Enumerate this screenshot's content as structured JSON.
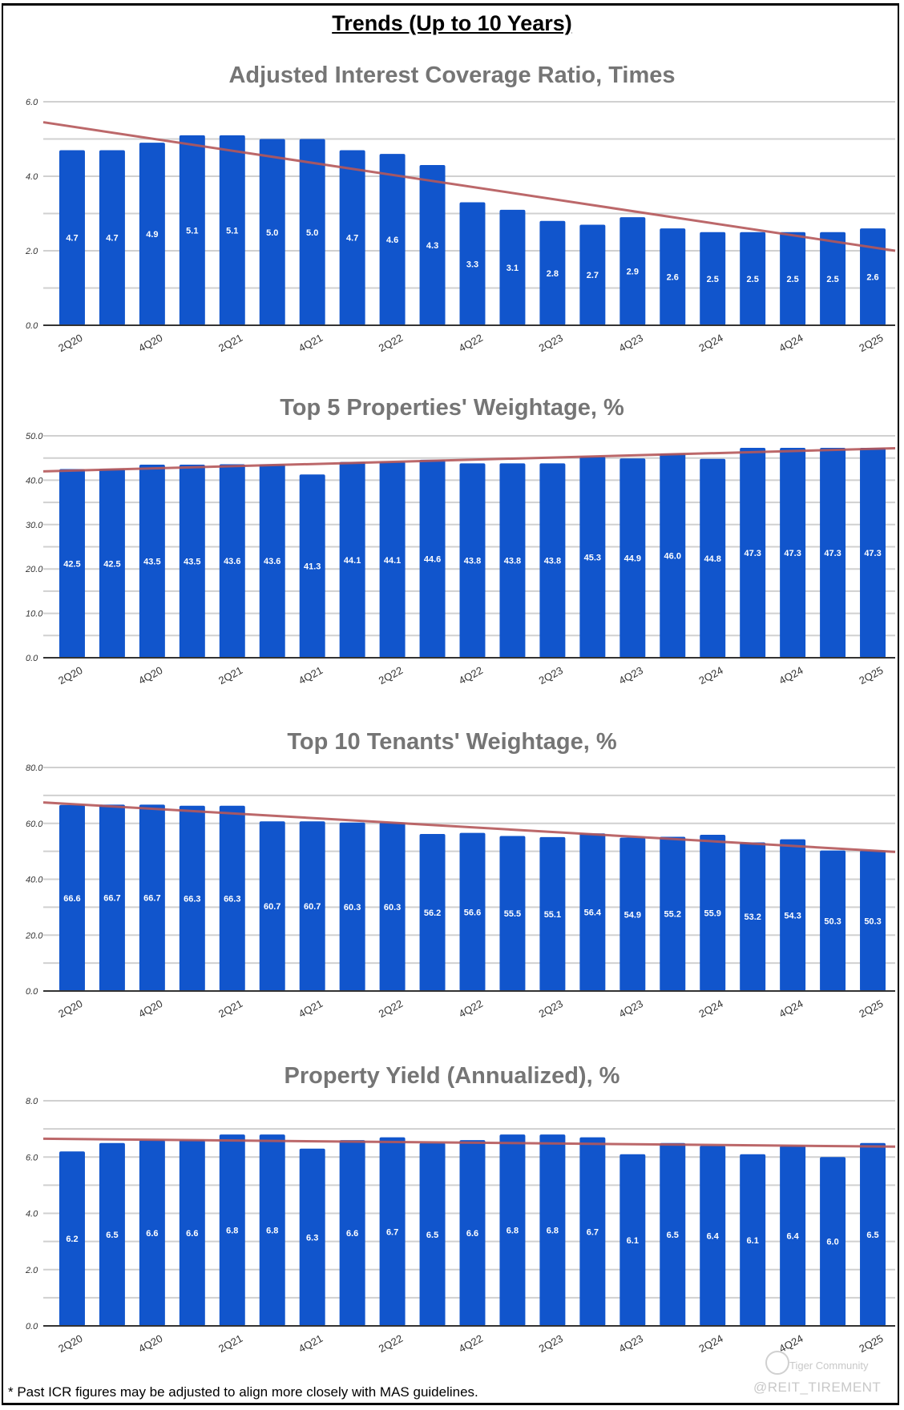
{
  "page_title": "Trends (Up to 10 Years)",
  "footnote": "* Past ICR figures may be adjusted to align more closely with MAS guidelines.",
  "watermark": {
    "brand": "Tiger Community",
    "handle": "@REIT_TIREMENT"
  },
  "colors": {
    "bar": "#1155cc",
    "trendline": "#b5585a",
    "grid": "#d0d0d0",
    "title": "#757575"
  },
  "chart_data": [
    {
      "type": "bar",
      "title": "Adjusted Interest Coverage Ratio, Times",
      "categories": [
        "2Q20",
        "3Q20",
        "4Q20",
        "1Q21",
        "2Q21",
        "3Q21",
        "4Q21",
        "1Q22",
        "2Q22",
        "3Q22",
        "4Q22",
        "1Q23",
        "2Q23",
        "3Q23",
        "4Q23",
        "1Q24",
        "2Q24",
        "3Q24",
        "4Q24",
        "1Q25",
        "2Q25"
      ],
      "shown_tick_labels": [
        "2Q20",
        "4Q20",
        "2Q21",
        "4Q21",
        "2Q22",
        "4Q22",
        "2Q23",
        "4Q23",
        "2Q24",
        "4Q24",
        "2Q25"
      ],
      "values": [
        4.7,
        4.7,
        4.9,
        5.1,
        5.1,
        5.0,
        5.0,
        4.7,
        4.6,
        4.3,
        3.3,
        3.1,
        2.8,
        2.7,
        2.9,
        2.6,
        2.5,
        2.5,
        2.5,
        2.5,
        2.6
      ],
      "ylim": [
        0,
        6
      ],
      "yticks": [
        "0.0",
        "2.0",
        "4.0",
        "6.0"
      ],
      "minor_step": 1,
      "trendline": {
        "start": 5.45,
        "end": 2.0
      },
      "grid": true
    },
    {
      "type": "bar",
      "title": "Top 5 Properties' Weightage, %",
      "categories": [
        "2Q20",
        "3Q20",
        "4Q20",
        "1Q21",
        "2Q21",
        "3Q21",
        "4Q21",
        "1Q22",
        "2Q22",
        "3Q22",
        "4Q22",
        "1Q23",
        "2Q23",
        "3Q23",
        "4Q23",
        "1Q24",
        "2Q24",
        "3Q24",
        "4Q24",
        "1Q25",
        "2Q25"
      ],
      "shown_tick_labels": [
        "2Q20",
        "4Q20",
        "2Q21",
        "4Q21",
        "2Q22",
        "4Q22",
        "2Q23",
        "4Q23",
        "2Q24",
        "4Q24",
        "2Q25"
      ],
      "values": [
        42.5,
        42.5,
        43.5,
        43.5,
        43.6,
        43.6,
        41.3,
        44.1,
        44.1,
        44.6,
        43.8,
        43.8,
        43.8,
        45.3,
        44.9,
        46.0,
        44.8,
        47.3,
        47.3,
        47.3,
        47.3
      ],
      "ylim": [
        0,
        50
      ],
      "yticks": [
        "0.0",
        "10.0",
        "20.0",
        "30.0",
        "40.0",
        "50.0"
      ],
      "minor_step": 5,
      "trendline": {
        "start": 42.0,
        "end": 47.2
      },
      "grid": true
    },
    {
      "type": "bar",
      "title": "Top 10 Tenants' Weightage, %",
      "categories": [
        "2Q20",
        "3Q20",
        "4Q20",
        "1Q21",
        "2Q21",
        "3Q21",
        "4Q21",
        "1Q22",
        "2Q22",
        "3Q22",
        "4Q22",
        "1Q23",
        "2Q23",
        "3Q23",
        "4Q23",
        "1Q24",
        "2Q24",
        "3Q24",
        "4Q24",
        "1Q25",
        "2Q25"
      ],
      "shown_tick_labels": [
        "2Q20",
        "4Q20",
        "2Q21",
        "4Q21",
        "2Q22",
        "4Q22",
        "2Q23",
        "4Q23",
        "2Q24",
        "4Q24",
        "2Q25"
      ],
      "values": [
        66.6,
        66.7,
        66.7,
        66.3,
        66.3,
        60.7,
        60.7,
        60.3,
        60.3,
        56.2,
        56.6,
        55.5,
        55.1,
        56.4,
        54.9,
        55.2,
        55.9,
        53.2,
        54.3,
        50.3,
        50.3
      ],
      "ylim": [
        0,
        80
      ],
      "yticks": [
        "0.0",
        "20.0",
        "40.0",
        "60.0",
        "80.0"
      ],
      "minor_step": 10,
      "trendline": {
        "start": 67.5,
        "end": 49.8
      },
      "grid": true
    },
    {
      "type": "bar",
      "title": "Property Yield (Annualized), %",
      "categories": [
        "2Q20",
        "3Q20",
        "4Q20",
        "1Q21",
        "2Q21",
        "3Q21",
        "4Q21",
        "1Q22",
        "2Q22",
        "3Q22",
        "4Q22",
        "1Q23",
        "2Q23",
        "3Q23",
        "4Q23",
        "1Q24",
        "2Q24",
        "3Q24",
        "4Q24",
        "1Q25",
        "2Q25"
      ],
      "shown_tick_labels": [
        "2Q20",
        "4Q20",
        "2Q21",
        "4Q21",
        "2Q22",
        "4Q22",
        "2Q23",
        "4Q23",
        "2Q24",
        "4Q24",
        "2Q25"
      ],
      "values": [
        6.2,
        6.5,
        6.6,
        6.6,
        6.8,
        6.8,
        6.3,
        6.6,
        6.7,
        6.5,
        6.6,
        6.8,
        6.8,
        6.7,
        6.1,
        6.5,
        6.4,
        6.1,
        6.4,
        6.0,
        6.5
      ],
      "ylim": [
        0,
        8
      ],
      "yticks": [
        "0.0",
        "2.0",
        "4.0",
        "6.0",
        "8.0"
      ],
      "minor_step": 1,
      "trendline": {
        "start": 6.65,
        "end": 6.37
      },
      "grid": true
    }
  ]
}
